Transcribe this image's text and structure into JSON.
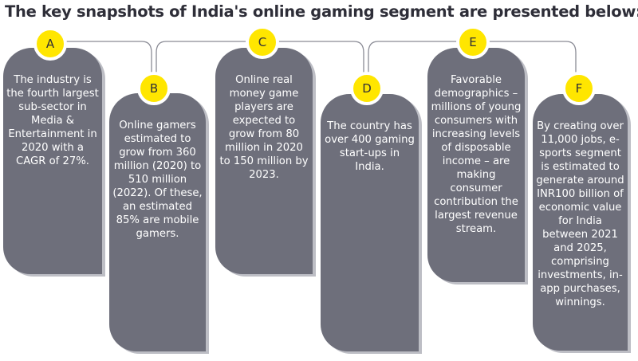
{
  "title": "The key snapshots of India's online gaming segment are presented below:",
  "colors": {
    "card": "#6e6f7b",
    "badge": "#ffe600",
    "title": "#2e2e38"
  },
  "items": [
    {
      "letter": "A",
      "text": "The industry is the fourth largest sub-sector in Media & Entertainment in 2020 with a CAGR of 27%."
    },
    {
      "letter": "B",
      "text": "Online gamers estimated to grow from 360 million (2020) to 510 million (2022). Of these, an estimated 85% are mobile gamers."
    },
    {
      "letter": "C",
      "text": "Online real money game players are expected to grow from 80 million in 2020 to 150 million by 2023."
    },
    {
      "letter": "D",
      "text": "The country has over 400 gaming start-ups in India."
    },
    {
      "letter": "E",
      "text": "Favorable demographics – millions of young consumers with increasing levels of disposable income – are making consumer contribution the largest revenue stream."
    },
    {
      "letter": "F",
      "text": "By creating over 11,000 jobs, e-sports segment is estimated to generate around INR100 billion of economic value for India between 2021 and 2025, comprising investments, in-app purchases, winnings."
    }
  ]
}
